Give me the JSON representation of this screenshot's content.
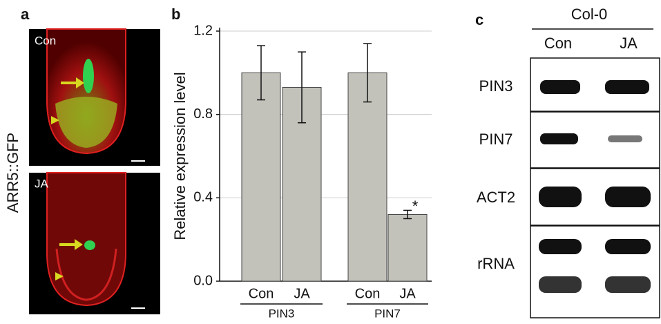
{
  "panel_a": {
    "label": "a",
    "ylabel": "ARR5::GFP",
    "images": [
      "Con",
      "JA"
    ]
  },
  "chart_data": {
    "type": "bar",
    "panel_label": "b",
    "ylabel": "Relative expression level",
    "categories": [
      "Con",
      "JA",
      "Con",
      "JA"
    ],
    "groups": [
      "PIN3",
      "PIN7"
    ],
    "values": [
      1.0,
      0.93,
      1.0,
      0.32
    ],
    "errors": [
      0.13,
      0.17,
      0.14,
      0.02
    ],
    "annotations": [
      null,
      null,
      null,
      "*"
    ],
    "color": "#c2c2bb",
    "ylim": [
      0,
      1.2
    ],
    "yticks": [
      {
        "value": 0,
        "label": "0.0"
      },
      0.4,
      0.8,
      1.2
    ],
    "grid": true
  },
  "panel_c": {
    "label": "c",
    "header": "Col-0",
    "columns": [
      "Con",
      "JA"
    ],
    "rows": [
      "PIN3",
      "PIN7",
      "ACT2",
      "rRNA"
    ]
  }
}
